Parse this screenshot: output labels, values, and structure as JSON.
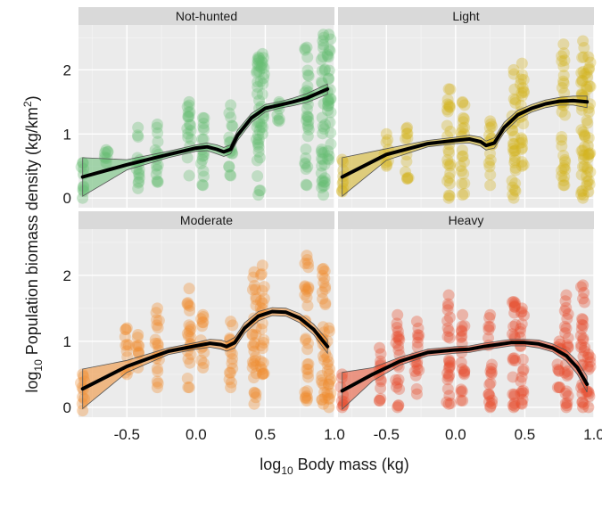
{
  "chart_data": {
    "type": "scatter",
    "xlabel": {
      "prefix": "log",
      "sub": "10",
      "rest": " Body mass (kg)"
    },
    "ylabel": {
      "prefix": "log",
      "sub": "10",
      "rest": " Population biomass density (kg/km",
      "sup": "2",
      "end": ")"
    },
    "xlim": [
      -0.85,
      1.0
    ],
    "ylim": [
      -0.15,
      2.7
    ],
    "x_ticks": [
      -0.5,
      0.0,
      0.5,
      1.0
    ],
    "x_tick_labels_left": [
      "-0.5",
      "0.0",
      "0.5",
      "1.0"
    ],
    "x_tick_labels_right": [
      "-0.5",
      "0.0",
      "0.5",
      "1.0"
    ],
    "y_ticks": [
      0,
      1,
      2
    ],
    "y_tick_labels": [
      "0",
      "1",
      "2"
    ],
    "grid": true,
    "panels": [
      {
        "name": "Not-hunted",
        "color": "#66bd73",
        "columns": [
          {
            "x": -0.82,
            "ymin": 0.0,
            "ymax": 0.55
          },
          {
            "x": -0.65,
            "ymin": 0.55,
            "ymax": 0.75
          },
          {
            "x": -0.42,
            "ymin": 0.15,
            "ymax": 1.1
          },
          {
            "x": -0.28,
            "ymin": 0.25,
            "ymax": 1.15
          },
          {
            "x": -0.05,
            "ymin": 0.35,
            "ymax": 1.5
          },
          {
            "x": 0.05,
            "ymin": 0.2,
            "ymax": 1.25
          },
          {
            "x": 0.25,
            "ymin": 0.35,
            "ymax": 1.45
          },
          {
            "x": 0.45,
            "ymin": 0.05,
            "ymax": 2.2
          },
          {
            "x": 0.48,
            "ymin": 1.0,
            "ymax": 2.25
          },
          {
            "x": 0.6,
            "ymin": 1.2,
            "ymax": 1.5
          },
          {
            "x": 0.8,
            "ymin": 0.2,
            "ymax": 2.35
          },
          {
            "x": 0.92,
            "ymin": 0.05,
            "ymax": 2.55
          },
          {
            "x": 0.96,
            "ymin": 0.6,
            "ymax": 2.55
          }
        ],
        "smooth_x": [
          -0.82,
          -0.5,
          -0.2,
          0.0,
          0.08,
          0.15,
          0.2,
          0.25,
          0.3,
          0.4,
          0.5,
          0.6,
          0.7,
          0.8,
          0.95
        ],
        "smooth_y": [
          0.33,
          0.52,
          0.68,
          0.78,
          0.8,
          0.76,
          0.72,
          0.76,
          0.98,
          1.25,
          1.4,
          1.45,
          1.5,
          1.56,
          1.7
        ],
        "band_halfwidth": [
          0.3,
          0.08,
          0.05,
          0.05,
          0.06,
          0.07,
          0.07,
          0.07,
          0.08,
          0.07,
          0.06,
          0.05,
          0.06,
          0.07,
          0.08
        ]
      },
      {
        "name": "Light",
        "color": "#d3b31f",
        "columns": [
          {
            "x": -0.82,
            "ymin": 0.1,
            "ymax": 0.6
          },
          {
            "x": -0.5,
            "ymin": 0.5,
            "ymax": 1.0
          },
          {
            "x": -0.35,
            "ymin": 0.3,
            "ymax": 1.1
          },
          {
            "x": -0.05,
            "ymin": 0.0,
            "ymax": 1.7
          },
          {
            "x": 0.05,
            "ymin": 0.05,
            "ymax": 1.5
          },
          {
            "x": 0.25,
            "ymin": 0.2,
            "ymax": 1.2
          },
          {
            "x": 0.42,
            "ymin": 0.0,
            "ymax": 2.0
          },
          {
            "x": 0.48,
            "ymin": 0.5,
            "ymax": 2.1
          },
          {
            "x": 0.78,
            "ymin": 0.2,
            "ymax": 2.4
          },
          {
            "x": 0.92,
            "ymin": 0.0,
            "ymax": 2.45
          },
          {
            "x": 0.96,
            "ymin": 0.1,
            "ymax": 2.2
          }
        ],
        "smooth_x": [
          -0.82,
          -0.5,
          -0.2,
          0.0,
          0.1,
          0.18,
          0.22,
          0.28,
          0.35,
          0.45,
          0.55,
          0.65,
          0.75,
          0.85,
          0.95
        ],
        "smooth_y": [
          0.33,
          0.68,
          0.85,
          0.9,
          0.92,
          0.88,
          0.82,
          0.86,
          1.1,
          1.3,
          1.4,
          1.47,
          1.51,
          1.52,
          1.5
        ],
        "band_halfwidth": [
          0.3,
          0.09,
          0.05,
          0.05,
          0.06,
          0.07,
          0.07,
          0.08,
          0.08,
          0.07,
          0.06,
          0.06,
          0.06,
          0.07,
          0.09
        ]
      },
      {
        "name": "Moderate",
        "color": "#f08d2e",
        "columns": [
          {
            "x": -0.82,
            "ymin": -0.05,
            "ymax": 0.5
          },
          {
            "x": -0.5,
            "ymin": 0.5,
            "ymax": 1.2
          },
          {
            "x": -0.42,
            "ymin": 0.6,
            "ymax": 1.1
          },
          {
            "x": -0.28,
            "ymin": 0.3,
            "ymax": 1.5
          },
          {
            "x": -0.05,
            "ymin": 0.3,
            "ymax": 1.8
          },
          {
            "x": 0.05,
            "ymin": 0.6,
            "ymax": 1.4
          },
          {
            "x": 0.25,
            "ymin": 0.3,
            "ymax": 1.3
          },
          {
            "x": 0.42,
            "ymin": 0.05,
            "ymax": 2.05
          },
          {
            "x": 0.48,
            "ymin": 0.5,
            "ymax": 2.15
          },
          {
            "x": 0.8,
            "ymin": 0.1,
            "ymax": 2.3
          },
          {
            "x": 0.92,
            "ymin": 0.05,
            "ymax": 2.1
          },
          {
            "x": 0.96,
            "ymin": 0.0,
            "ymax": 1.2
          }
        ],
        "smooth_x": [
          -0.82,
          -0.5,
          -0.2,
          0.0,
          0.1,
          0.18,
          0.22,
          0.28,
          0.35,
          0.45,
          0.55,
          0.65,
          0.75,
          0.85,
          0.95
        ],
        "smooth_y": [
          0.28,
          0.62,
          0.85,
          0.93,
          0.97,
          0.95,
          0.92,
          0.98,
          1.2,
          1.38,
          1.45,
          1.44,
          1.35,
          1.18,
          0.92
        ],
        "band_halfwidth": [
          0.3,
          0.09,
          0.05,
          0.05,
          0.06,
          0.07,
          0.07,
          0.08,
          0.08,
          0.07,
          0.06,
          0.06,
          0.07,
          0.08,
          0.1
        ]
      },
      {
        "name": "Heavy",
        "color": "#e74c2c",
        "columns": [
          {
            "x": -0.82,
            "ymin": 0.0,
            "ymax": 0.5
          },
          {
            "x": -0.55,
            "ymin": 0.1,
            "ymax": 0.9
          },
          {
            "x": -0.42,
            "ymin": 0.0,
            "ymax": 1.4
          },
          {
            "x": -0.28,
            "ymin": 0.2,
            "ymax": 1.3
          },
          {
            "x": -0.05,
            "ymin": 0.05,
            "ymax": 1.7
          },
          {
            "x": 0.05,
            "ymin": 0.1,
            "ymax": 1.4
          },
          {
            "x": 0.25,
            "ymin": 0.0,
            "ymax": 1.4
          },
          {
            "x": 0.42,
            "ymin": 0.0,
            "ymax": 1.6
          },
          {
            "x": 0.48,
            "ymin": 0.05,
            "ymax": 1.5
          },
          {
            "x": 0.75,
            "ymin": 0.3,
            "ymax": 1.0
          },
          {
            "x": 0.8,
            "ymin": 0.0,
            "ymax": 1.7
          },
          {
            "x": 0.92,
            "ymin": 0.0,
            "ymax": 1.85
          },
          {
            "x": 0.96,
            "ymin": 0.0,
            "ymax": 0.8
          }
        ],
        "smooth_x": [
          -0.82,
          -0.6,
          -0.4,
          -0.2,
          0.0,
          0.1,
          0.2,
          0.3,
          0.4,
          0.5,
          0.6,
          0.7,
          0.8,
          0.88,
          0.95
        ],
        "smooth_y": [
          0.25,
          0.5,
          0.7,
          0.83,
          0.87,
          0.88,
          0.92,
          0.95,
          0.98,
          0.98,
          0.96,
          0.9,
          0.78,
          0.6,
          0.35
        ],
        "band_halfwidth": [
          0.28,
          0.1,
          0.06,
          0.05,
          0.05,
          0.05,
          0.05,
          0.05,
          0.05,
          0.05,
          0.06,
          0.06,
          0.08,
          0.1,
          0.12
        ]
      }
    ]
  }
}
